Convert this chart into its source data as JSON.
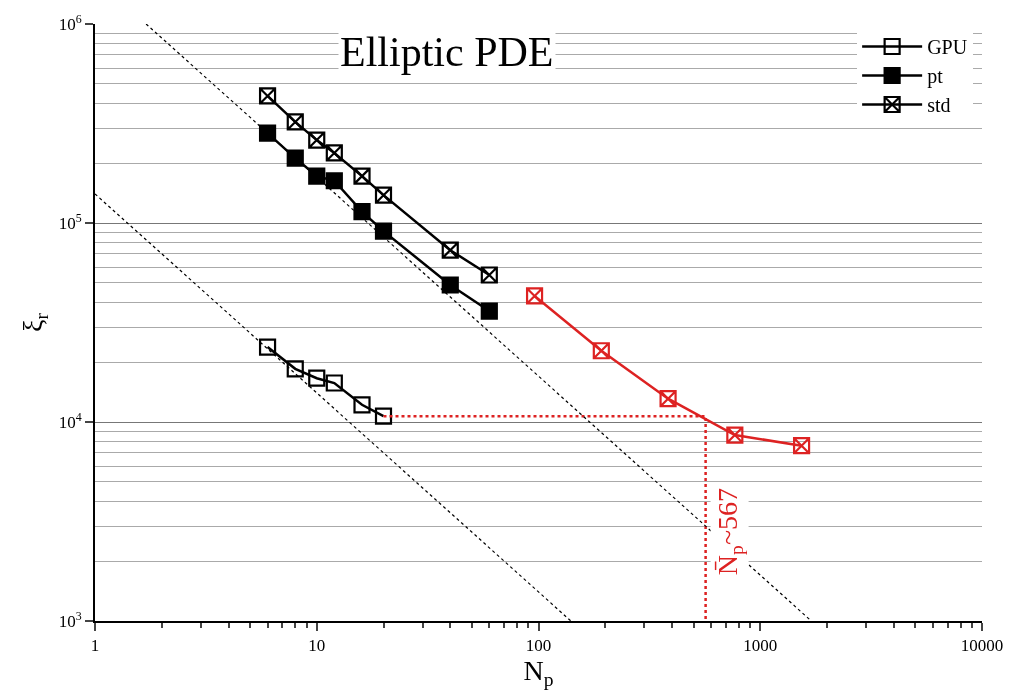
{
  "chart_data": {
    "type": "line",
    "title": "Elliptic PDE",
    "xlabel": "N$_{p}$",
    "ylabel": "ξ$_{r}$",
    "log": "xy",
    "grid": "y",
    "legend": "top right",
    "line_style": "solid",
    "xlim": [
      1,
      10000
    ],
    "xticks": [
      1,
      10,
      100,
      1000,
      10000
    ],
    "ylim": [
      1000,
      1000000
    ],
    "yticks": [
      {
        "value": 1000,
        "label": "10$^{3}$"
      },
      {
        "value": 10000,
        "label": "10$^{4}$"
      },
      {
        "value": 100000,
        "label": "10$^{5}$"
      },
      {
        "value": 1000000,
        "label": "10$^{6}$"
      }
    ],
    "series": [
      {
        "name": "GPU",
        "color": "#000000",
        "marker": "square-open",
        "x": [
          6,
          8,
          10,
          12,
          16,
          20
        ],
        "values": [
          23800,
          18500,
          16600,
          15700,
          12200,
          10700
        ]
      },
      {
        "name": "pt",
        "color": "#000000",
        "marker": "square",
        "x": [
          6,
          8,
          10,
          12,
          16,
          20,
          40,
          60
        ],
        "values": [
          283000,
          212000,
          172000,
          163000,
          114000,
          91000,
          48800,
          36100
        ]
      },
      {
        "name": "std",
        "color": "#000000",
        "marker": "cross",
        "x": [
          6,
          8,
          10,
          12,
          16,
          20,
          40,
          60
        ],
        "values": [
          435000,
          322000,
          261000,
          225000,
          172000,
          138000,
          73000,
          54800
        ]
      },
      {
        "color": "#dd2222",
        "marker": "cross",
        "x": [
          96,
          192,
          384,
          768,
          1536
        ],
        "values": [
          43000,
          22800,
          13100,
          8600,
          7600
        ]
      },
      {
        "color": "#dd2222",
        "marker": "none",
        "line_style": "dotted",
        "x": [
          20,
          567,
          567
        ],
        "values": [
          10700,
          10700,
          1000
        ]
      },
      {
        "color": "#000000",
        "marker": "none",
        "line_style": "dotted",
        "x": [
          1.7,
          1700
        ],
        "values": [
          1000000,
          1000
        ]
      },
      {
        "color": "#000000",
        "marker": "none",
        "line_style": "dotted",
        "x": [
          1,
          140
        ],
        "values": [
          140000,
          1000
        ]
      }
    ],
    "annotations": [
      {
        "text": "N̄$_{p}$~567",
        "x": 567,
        "y": 2800
      }
    ]
  }
}
